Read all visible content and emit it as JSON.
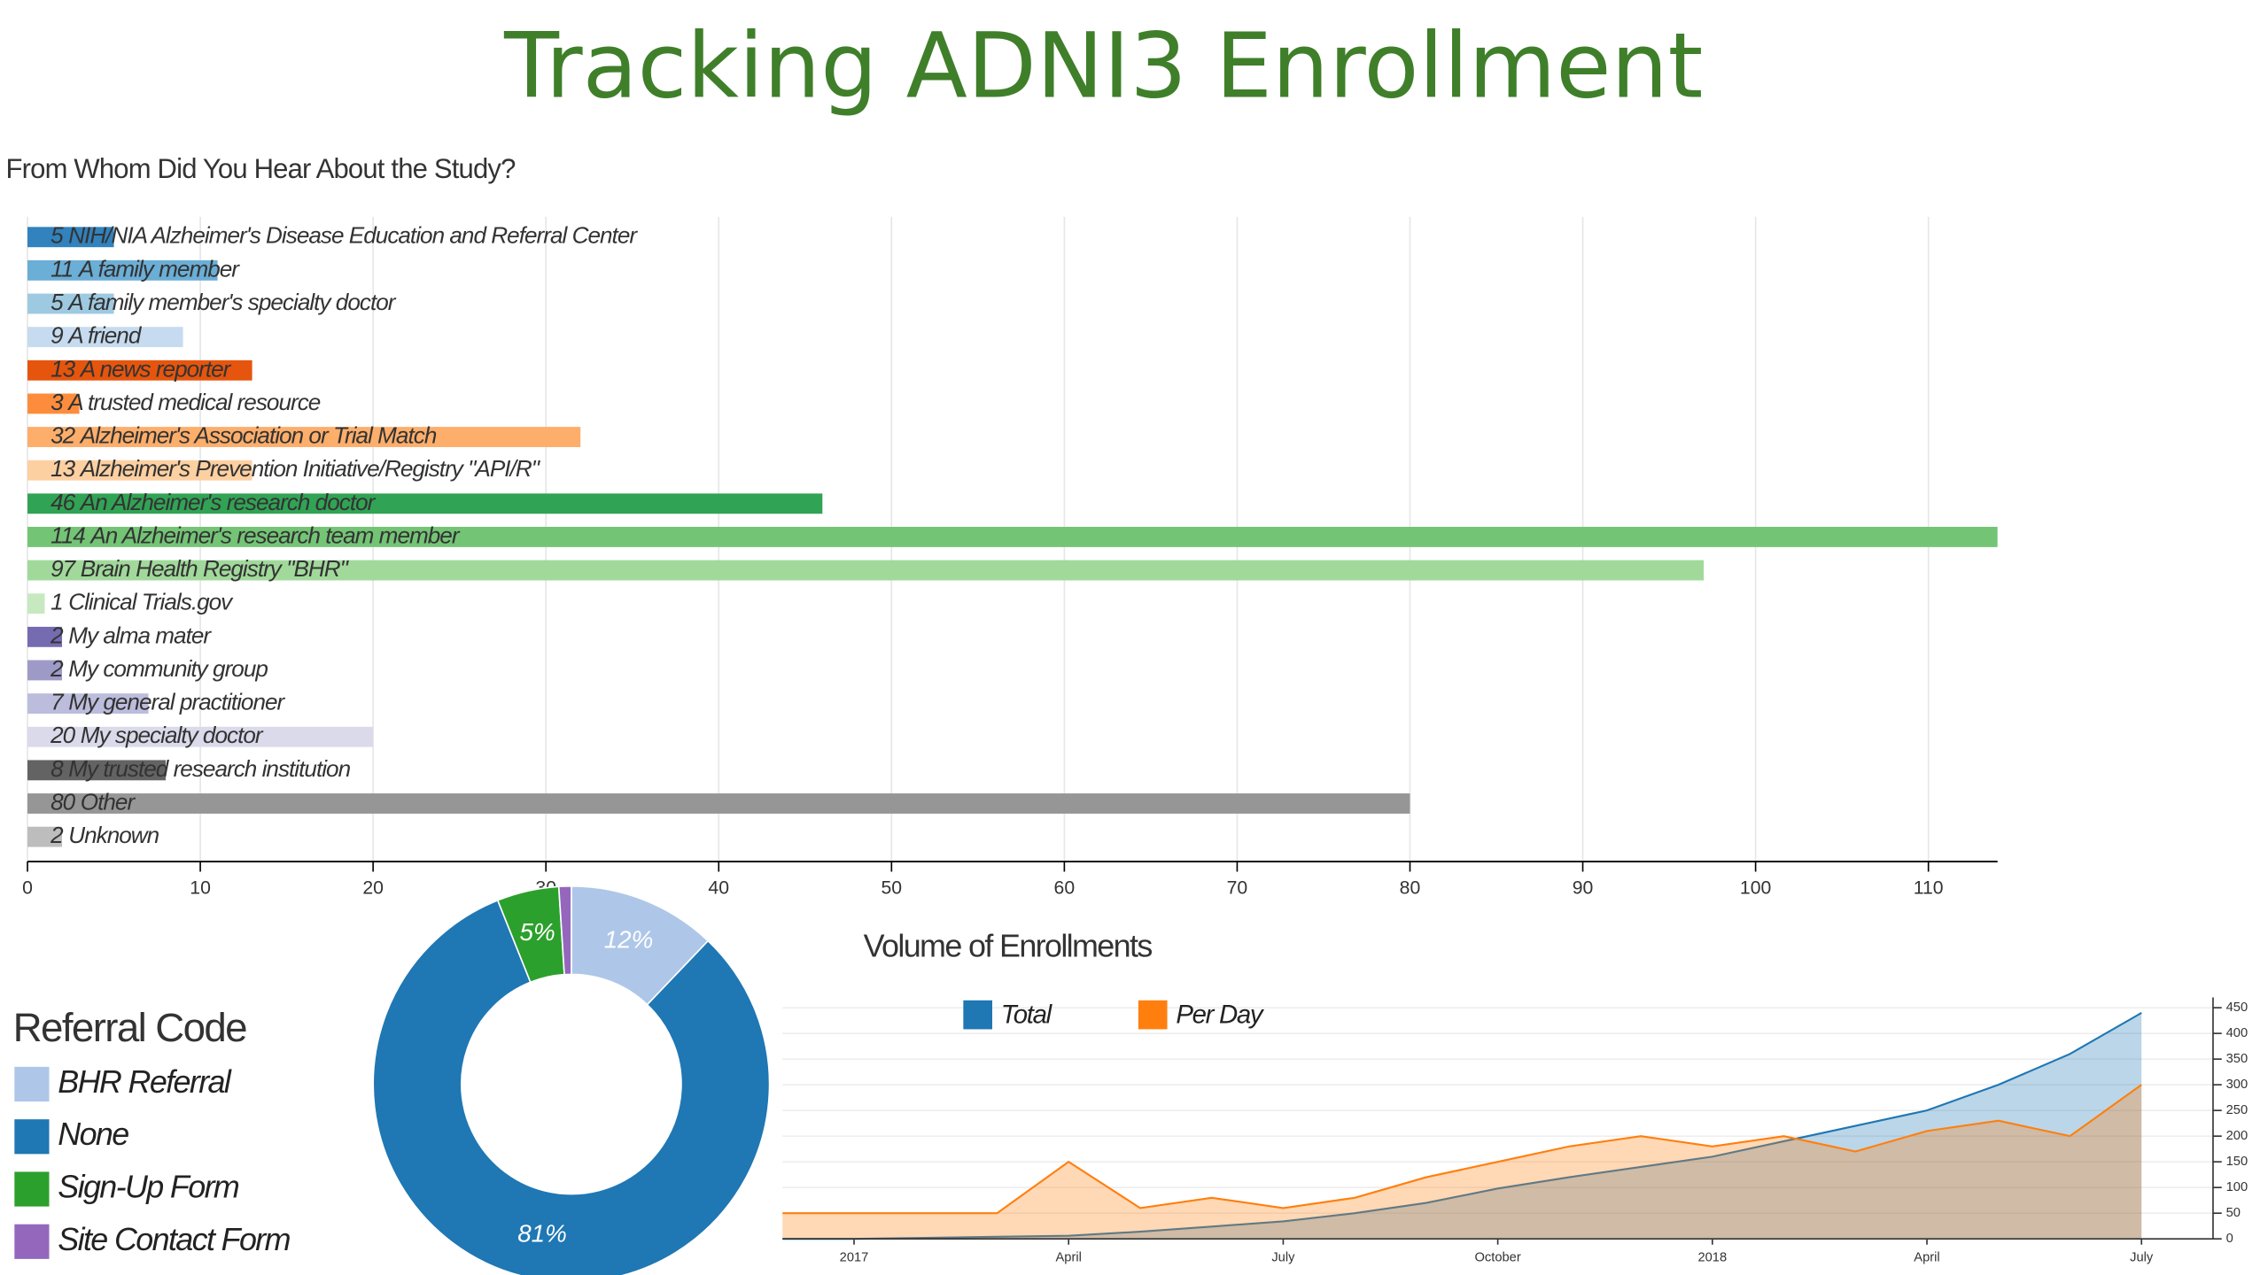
{
  "title": "Tracking ADNI3 Enrollment",
  "chart_data": [
    {
      "type": "bar",
      "orientation": "horizontal",
      "title": "From Whom Did You Hear About the Study?",
      "categories": [
        "NIH/NIA Alzheimer's Disease Education and Referral Center",
        "A family member",
        "A family member's specialty doctor",
        "A friend",
        "A news reporter",
        "A trusted medical resource",
        "Alzheimer's Association or Trial Match",
        "Alzheimer's Prevention Initiative/Registry \"API/R\"",
        "An Alzheimer's research doctor",
        "An Alzheimer's research team member",
        "Brain Health Registry \"BHR\"",
        "Clinical Trials.gov",
        "My alma mater",
        "My community group",
        "My general practitioner",
        "My specialty doctor",
        "My trusted research institution",
        "Other",
        "Unknown"
      ],
      "values": [
        5,
        11,
        5,
        9,
        13,
        3,
        32,
        13,
        46,
        114,
        97,
        1,
        2,
        2,
        7,
        20,
        8,
        80,
        2
      ],
      "colors": [
        "#3182bd",
        "#6baed6",
        "#9ecae1",
        "#c6dbef",
        "#e6550d",
        "#fd8d3c",
        "#fdae6b",
        "#fdd0a2",
        "#31a354",
        "#74c476",
        "#a1d99b",
        "#c7e9c0",
        "#756bb1",
        "#9e9ac8",
        "#bcbddc",
        "#dadaeb",
        "#636363",
        "#969696",
        "#bdbdbd"
      ],
      "xlim": [
        0,
        114
      ],
      "xticks": [
        0,
        10,
        20,
        30,
        40,
        50,
        60,
        70,
        80,
        90,
        100,
        110
      ],
      "grid": true
    },
    {
      "type": "donut",
      "legend_title": "Referral Code",
      "categories": [
        "BHR Referral",
        "None",
        "Sign-Up Form",
        "Site Contact Form"
      ],
      "values": [
        12,
        81,
        5,
        1
      ],
      "value_labels": [
        "12%",
        "81%",
        "5%",
        null
      ],
      "colors": [
        "#aec7e8",
        "#1f77b4",
        "#2ca02c",
        "#9467bd"
      ]
    },
    {
      "type": "area",
      "title": "Volume of Enrollments",
      "x": [
        "2016-12",
        "2017-01",
        "2017-02",
        "2017-03",
        "2017-04",
        "2017-05",
        "2017-06",
        "2017-07",
        "2017-08",
        "2017-09",
        "2017-10",
        "2017-11",
        "2017-12",
        "2018-01",
        "2018-02",
        "2018-03",
        "2018-04",
        "2018-05",
        "2018-06",
        "2018-07"
      ],
      "series": [
        {
          "name": "Total",
          "color": "#1f77b4",
          "values": [
            0,
            0,
            2,
            4,
            6,
            14,
            24,
            34,
            50,
            70,
            98,
            120,
            140,
            160,
            190,
            220,
            250,
            300,
            360,
            440
          ]
        },
        {
          "name": "Per Day",
          "color": "#ff7f0e",
          "values": [
            50,
            50,
            50,
            50,
            150,
            60,
            80,
            60,
            80,
            120,
            150,
            180,
            200,
            180,
            200,
            170,
            210,
            230,
            200,
            300
          ]
        }
      ],
      "xlim": [
        "2016-12",
        "2018-08"
      ],
      "xticks": [
        {
          "value": "2017-01",
          "label": "2017"
        },
        {
          "value": "2017-04",
          "label": "April"
        },
        {
          "value": "2017-07",
          "label": "July"
        },
        {
          "value": "2017-10",
          "label": "October"
        },
        {
          "value": "2018-01",
          "label": "2018"
        },
        {
          "value": "2018-04",
          "label": "April"
        },
        {
          "value": "2018-07",
          "label": "July"
        }
      ],
      "ylim": [
        0,
        470
      ],
      "yticks": [
        0,
        50,
        100,
        150,
        200,
        250,
        300,
        350,
        400,
        450
      ],
      "y_axis_side": "right",
      "grid": true
    }
  ]
}
